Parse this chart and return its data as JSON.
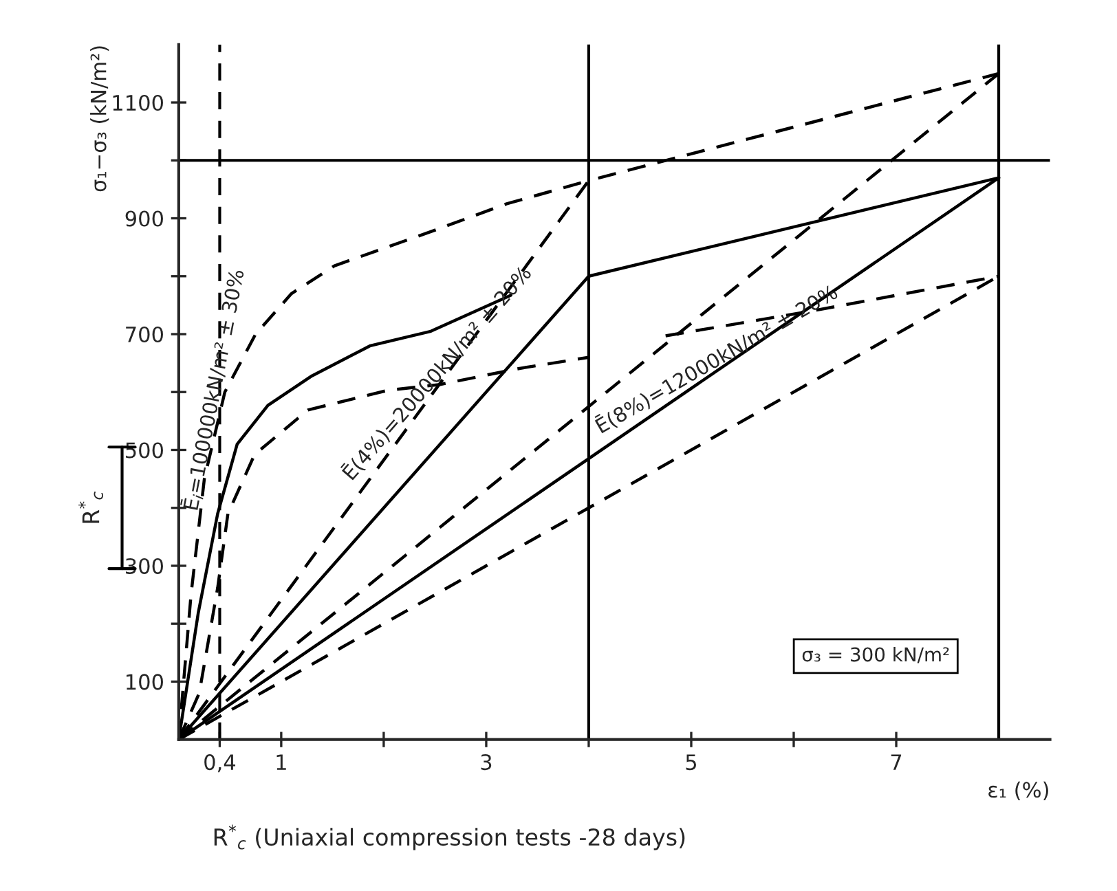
{
  "chart_data": {
    "type": "line",
    "ylabel": "σ₁−σ₃ (kN/m²)",
    "xlabel": "ε₁ (%)",
    "xlim": [
      0,
      8.5
    ],
    "ylim": [
      0,
      1200
    ],
    "xticks": [
      {
        "value": 0.4,
        "label": "0,4"
      },
      1,
      {
        "value": 2,
        "label": null
      },
      3,
      {
        "value": 4,
        "label": null
      },
      5,
      {
        "value": 6,
        "label": null
      },
      7
    ],
    "yticks": [
      100,
      {
        "value": 200,
        "label": null
      },
      300,
      {
        "value": 400,
        "label": null
      },
      500,
      {
        "value": 600,
        "label": null
      },
      700,
      {
        "value": 800,
        "label": null
      },
      900,
      {
        "value": 1000,
        "label": null
      },
      1100
    ],
    "grid": false,
    "marker": "none",
    "series": [
      {
        "color": "#000000",
        "line_style": "solid",
        "x": [
          0,
          0.19,
          0.38,
          0.57,
          0.87,
          1.3,
          1.87,
          2.46,
          3.24
        ],
        "values": [
          0,
          218,
          390,
          510,
          577,
          628,
          680,
          705,
          767
        ]
      },
      {
        "color": "#000000",
        "line_style": "dashed",
        "x": [
          0,
          0.12,
          0.25,
          0.45,
          0.75,
          1.1,
          1.52,
          2.46,
          3.2,
          4
        ],
        "values": [
          0,
          250,
          450,
          600,
          700,
          770,
          818,
          877,
          925,
          965
        ]
      },
      {
        "color": "#000000",
        "line_style": "dashed",
        "x": [
          0,
          0.2,
          0.38,
          0.48,
          0.74,
          1.26,
          2.04,
          2.55,
          3.3,
          4
        ],
        "values": [
          0,
          80,
          262,
          390,
          492,
          569,
          603,
          613,
          640,
          660
        ]
      },
      {
        "color": "#000000",
        "line_style": "solid",
        "x": [
          0,
          4,
          8
        ],
        "values": [
          0,
          800,
          970
        ]
      },
      {
        "color": "#000000",
        "line_style": "dashed",
        "x": [
          0,
          4,
          8
        ],
        "values": [
          0,
          965,
          1150
        ]
      },
      {
        "color": "#000000",
        "line_style": "solid",
        "x": [
          0,
          8
        ],
        "values": [
          0,
          970
        ]
      },
      {
        "color": "#000000",
        "line_style": "dashed",
        "x": [
          0,
          8
        ],
        "values": [
          0,
          1150
        ]
      },
      {
        "color": "#000000",
        "line_style": "dashed",
        "x": [
          0,
          8
        ],
        "values": [
          0,
          800
        ]
      },
      {
        "color": "#000000",
        "line_style": "dashed",
        "x": [
          4.75,
          6.21,
          8
        ],
        "values": [
          697,
          741,
          800
        ]
      }
    ],
    "ref_lines": [
      {
        "axis": "x",
        "value": 0.4,
        "line_style": "dashed",
        "color": "#000000"
      },
      {
        "axis": "x",
        "value": 4,
        "line_style": "solid",
        "color": "#000000"
      },
      {
        "axis": "x",
        "value": 8,
        "line_style": "solid",
        "color": "#000000"
      },
      {
        "axis": "y",
        "value": 1000,
        "line_style": "solid",
        "color": "#000000"
      }
    ],
    "annotations": [
      "R$^{*}$$_{c}$",
      {
        "text": "Ē$_{i}$=100000kN/m² ± 30%",
        "x": 0.45,
        "y": 600
      },
      {
        "text": "Ē(4%)=20000kN/m² ± 20%",
        "x": 2.6,
        "y": 620
      },
      {
        "text": "Ē(8%)=12000kN/m² ± 20%",
        "x": 5.3,
        "y": 640
      },
      "σ₃ = 300 kN/m²",
      "R$^{*}$$_{c}$ (Uniaxial compression tests -28 days)"
    ]
  }
}
